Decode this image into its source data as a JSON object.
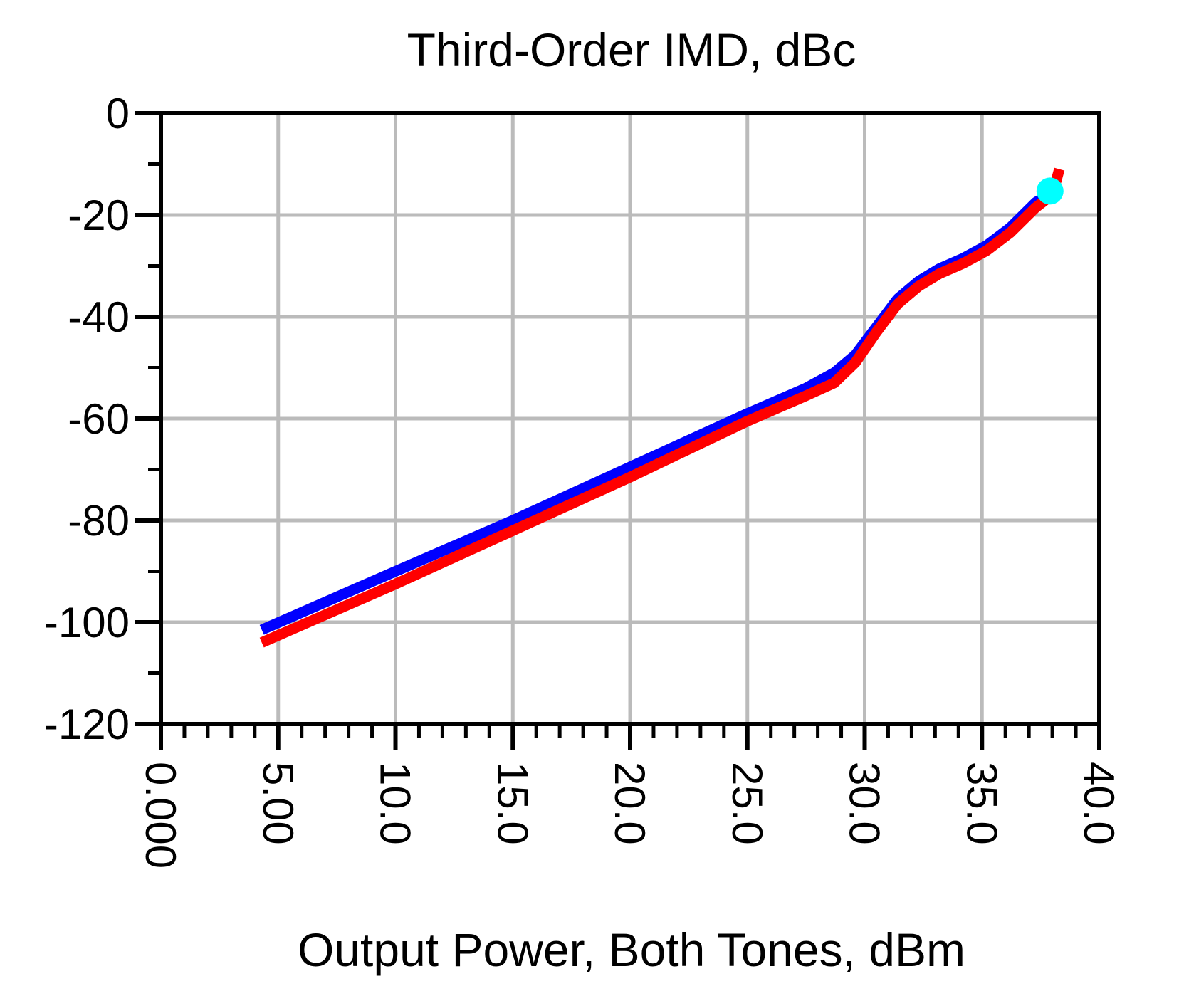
{
  "chart_data": {
    "type": "line",
    "title": "Third-Order IMD, dBc",
    "xlabel": "Output Power, Both Tones, dBm",
    "ylabel": "",
    "xlim": [
      0,
      40
    ],
    "ylim": [
      -120,
      0
    ],
    "x_ticks": [
      "0.000",
      "5.00",
      "10.0",
      "15.0",
      "20.0",
      "25.0",
      "30.0",
      "35.0",
      "40.0"
    ],
    "y_ticks": [
      "0",
      "-20",
      "-40",
      "-60",
      "-80",
      "-100",
      "-120"
    ],
    "grid": true,
    "series": [
      {
        "color": "#0000ff",
        "x": [
          4.3,
          10,
          15,
          20,
          25,
          27.5,
          28.7,
          29.6,
          30.5,
          31.4,
          32.3,
          33.2,
          34.2,
          35.2,
          36.2,
          37.3,
          38.0
        ],
        "values": [
          -101.5,
          -90,
          -80,
          -69.5,
          -59,
          -54,
          -51,
          -47.5,
          -42,
          -36.5,
          -33,
          -30.5,
          -28.5,
          -26,
          -22.5,
          -17.5,
          -15.5
        ]
      },
      {
        "color": "#ff0000",
        "x": [
          4.3,
          10,
          15,
          20,
          25,
          27.5,
          28.7,
          29.6,
          30.5,
          31.4,
          32.3,
          33.2,
          34.2,
          35.2,
          36.2,
          37.3,
          38.0,
          38.3
        ],
        "values": [
          -104,
          -92.5,
          -82,
          -71.5,
          -60.5,
          -55.5,
          -53,
          -49,
          -43,
          -37.5,
          -34,
          -31.5,
          -29.5,
          -27,
          -23.5,
          -18.5,
          -16,
          -11
        ]
      }
    ],
    "marker": {
      "x": 37.9,
      "y": -15.3,
      "color": "#00ffff"
    }
  }
}
